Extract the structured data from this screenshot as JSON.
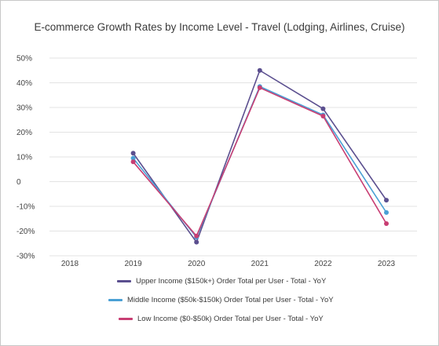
{
  "chart_data": {
    "type": "line",
    "title": "E-commerce Growth Rates by Income Level - Travel (Lodging, Airlines, Cruise)",
    "xlabel": "",
    "ylabel": "",
    "categories": [
      "2018",
      "2019",
      "2020",
      "2021",
      "2022",
      "2023"
    ],
    "ylim": [
      -30,
      50
    ],
    "yticks": [
      {
        "value": 50,
        "label": "50%"
      },
      {
        "value": 40,
        "label": "40%"
      },
      {
        "value": 30,
        "label": "30%"
      },
      {
        "value": 20,
        "label": "20%"
      },
      {
        "value": 10,
        "label": "10%"
      },
      {
        "value": 0,
        "label": "0"
      },
      {
        "value": -10,
        "label": "-10%"
      },
      {
        "value": -20,
        "label": "-20%"
      },
      {
        "value": -30,
        "label": "-30%"
      }
    ],
    "grid": true,
    "legend_position": "bottom",
    "series": [
      {
        "name": "Upper Income ($150k+) Order Total per User - Total - YoY",
        "color": "#5b4f8f",
        "values": [
          null,
          11.5,
          -24.5,
          45,
          29.5,
          -7.5
        ]
      },
      {
        "name": "Middle Income ($50k-$150k) Order Total per User - Total - YoY",
        "color": "#4aa0d5",
        "values": [
          null,
          9.5,
          -22.5,
          38.5,
          27,
          -12.5
        ]
      },
      {
        "name": "Low Income ($0-$50k) Order Total per User - Total - YoY",
        "color": "#c83e73",
        "values": [
          null,
          8,
          -22,
          38,
          26.5,
          -17
        ]
      }
    ]
  }
}
